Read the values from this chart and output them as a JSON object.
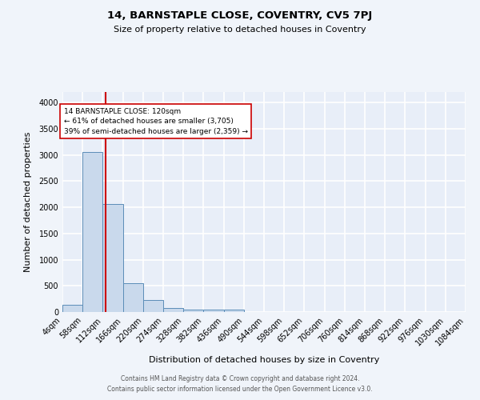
{
  "title": "14, BARNSTAPLE CLOSE, COVENTRY, CV5 7PJ",
  "subtitle": "Size of property relative to detached houses in Coventry",
  "xlabel": "Distribution of detached houses by size in Coventry",
  "ylabel": "Number of detached properties",
  "footer_line1": "Contains HM Land Registry data © Crown copyright and database right 2024.",
  "footer_line2": "Contains public sector information licensed under the Open Government Licence v3.0.",
  "bin_edges": [
    4,
    58,
    112,
    166,
    220,
    274,
    328,
    382,
    436,
    490,
    544,
    598,
    652,
    706,
    760,
    814,
    868,
    922,
    976,
    1030,
    1084
  ],
  "bin_counts": [
    140,
    3060,
    2060,
    555,
    225,
    70,
    50,
    40,
    40,
    0,
    0,
    0,
    0,
    0,
    0,
    0,
    0,
    0,
    0,
    0
  ],
  "bar_facecolor": "#c9d9ec",
  "bar_edgecolor": "#5b8db8",
  "vline_x": 120,
  "vline_color": "#cc0000",
  "annotation_text": "14 BARNSTAPLE CLOSE: 120sqm\n← 61% of detached houses are smaller (3,705)\n39% of semi-detached houses are larger (2,359) →",
  "annotation_box_color": "#ffffff",
  "annotation_box_edgecolor": "#cc0000",
  "background_color": "#f0f4fa",
  "plot_background_color": "#e8eef8",
  "grid_color": "#ffffff",
  "ylim": [
    0,
    4200
  ],
  "tick_labels": [
    "4sqm",
    "58sqm",
    "112sqm",
    "166sqm",
    "220sqm",
    "274sqm",
    "328sqm",
    "382sqm",
    "436sqm",
    "490sqm",
    "544sqm",
    "598sqm",
    "652sqm",
    "706sqm",
    "760sqm",
    "814sqm",
    "868sqm",
    "922sqm",
    "976sqm",
    "1030sqm",
    "1084sqm"
  ]
}
